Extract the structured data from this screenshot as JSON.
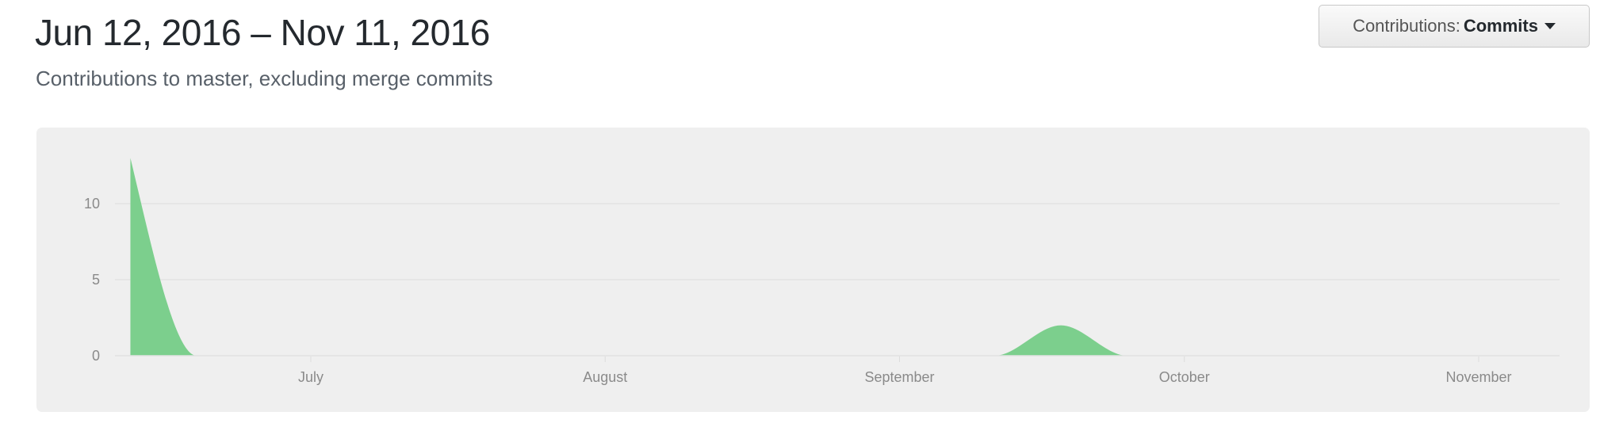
{
  "header": {
    "title": "Jun 12, 2016 – Nov 11, 2016",
    "subtitle": "Contributions to master, excluding merge commits"
  },
  "dropdown": {
    "label": "Contributions:",
    "selected": "Commits",
    "icon": "caret-down-icon"
  },
  "colors": {
    "area": "#7ccf8d",
    "panel": "#efefef",
    "grid": "#e4e4e4"
  },
  "chart_data": {
    "type": "area",
    "title": "",
    "xlabel": "",
    "ylabel": "",
    "ylim": [
      0,
      13
    ],
    "y_ticks": [
      0,
      5,
      10
    ],
    "x_tick_labels": [
      "July",
      "August",
      "September",
      "October",
      "November"
    ],
    "x_tick_dates": [
      "2016-07-01",
      "2016-08-01",
      "2016-09-01",
      "2016-10-01",
      "2016-11-01"
    ],
    "grid": true,
    "x": [
      "2016-06-12",
      "2016-06-19",
      "2016-06-26",
      "2016-07-03",
      "2016-07-10",
      "2016-07-17",
      "2016-07-24",
      "2016-07-31",
      "2016-08-07",
      "2016-08-14",
      "2016-08-21",
      "2016-08-28",
      "2016-09-04",
      "2016-09-11",
      "2016-09-18",
      "2016-09-25",
      "2016-10-02",
      "2016-10-09",
      "2016-10-16",
      "2016-10-23",
      "2016-10-30",
      "2016-11-06"
    ],
    "values": [
      13,
      0,
      0,
      0,
      0,
      0,
      0,
      0,
      0,
      0,
      0,
      0,
      0,
      0,
      2,
      0,
      0,
      0,
      0,
      0,
      0,
      0
    ]
  }
}
